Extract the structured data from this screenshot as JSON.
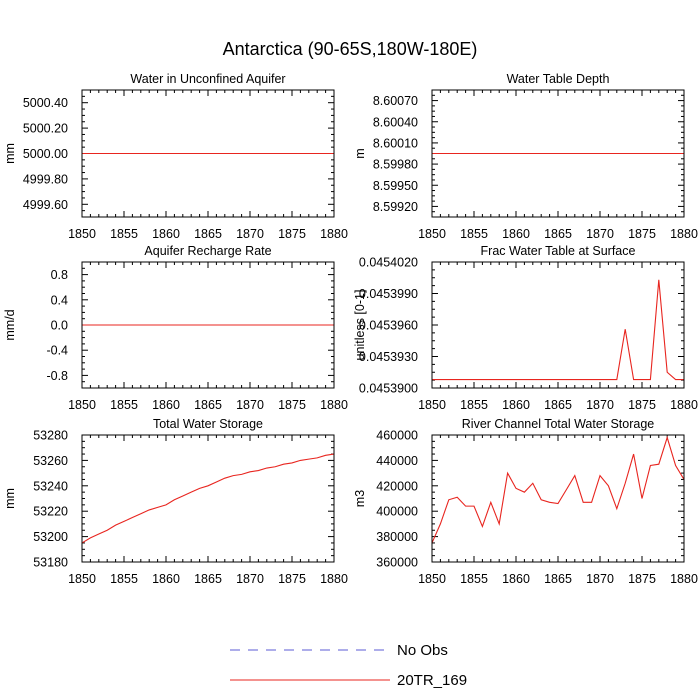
{
  "figure": {
    "title": "Antarctica (90-65S,180W-180E)"
  },
  "legend": {
    "entries": [
      {
        "label": "No Obs",
        "color": "#5b5bd6",
        "dash": true
      },
      {
        "label": "20TR_169",
        "color": "#e8251f",
        "dash": false
      }
    ]
  },
  "chart_data": [
    {
      "type": "line",
      "title": "Water in Unconfined Aquifer",
      "xlabel": "",
      "ylabel": "mm",
      "xlim": [
        1850,
        1880
      ],
      "ylim": [
        4999.5,
        5000.5
      ],
      "xticks": [
        1850,
        1855,
        1860,
        1865,
        1870,
        1875,
        1880
      ],
      "yticks": [
        4999.6,
        4999.8,
        5000.0,
        5000.2,
        5000.4
      ],
      "ytick_labels": [
        "4999.60",
        "4999.80",
        "5000.00",
        "5000.20",
        "5000.40"
      ],
      "series": [
        {
          "name": "20TR_169",
          "color": "#e8251f",
          "x": [
            1850,
            1880
          ],
          "y": [
            5000.0,
            5000.0
          ]
        }
      ]
    },
    {
      "type": "line",
      "title": "Water Table Depth",
      "xlabel": "",
      "ylabel": "m",
      "xlim": [
        1850,
        1880
      ],
      "ylim": [
        8.59905,
        8.60085
      ],
      "xticks": [
        1850,
        1855,
        1860,
        1865,
        1870,
        1875,
        1880
      ],
      "yticks": [
        8.5992,
        8.5995,
        8.5998,
        8.6001,
        8.6004,
        8.6007
      ],
      "ytick_labels": [
        "8.59920",
        "8.59950",
        "8.59980",
        "8.60010",
        "8.60040",
        "8.60070"
      ],
      "series": [
        {
          "name": "20TR_169",
          "color": "#e8251f",
          "x": [
            1850,
            1880
          ],
          "y": [
            8.59995,
            8.59995
          ]
        }
      ]
    },
    {
      "type": "line",
      "title": "Aquifer Recharge Rate",
      "xlabel": "",
      "ylabel": "mm/d",
      "xlim": [
        1850,
        1880
      ],
      "ylim": [
        -1.0,
        1.0
      ],
      "xticks": [
        1850,
        1855,
        1860,
        1865,
        1870,
        1875,
        1880
      ],
      "yticks": [
        -0.8,
        -0.4,
        0.0,
        0.4,
        0.8
      ],
      "ytick_labels": [
        "-0.8",
        "-0.4",
        "0.0",
        "0.4",
        "0.8"
      ],
      "series": [
        {
          "name": "20TR_169",
          "color": "#e8251f",
          "x": [
            1850,
            1880
          ],
          "y": [
            0.0,
            0.0
          ]
        }
      ]
    },
    {
      "type": "line",
      "title": "Frac Water Table at Surface",
      "xlabel": "",
      "ylabel": "unitless [0-1]",
      "xlim": [
        1850,
        1880
      ],
      "ylim": [
        0.04539,
        0.045402
      ],
      "xticks": [
        1850,
        1855,
        1860,
        1865,
        1870,
        1875,
        1880
      ],
      "yticks": [
        0.04539,
        0.045393,
        0.045396,
        0.045399,
        0.045402
      ],
      "ytick_labels": [
        "0.0453900",
        "0.0453930",
        "0.0453960",
        "0.0453990",
        "0.0454020"
      ],
      "series": [
        {
          "name": "20TR_169",
          "color": "#e8251f",
          "x": [
            1850,
            1851,
            1852,
            1853,
            1854,
            1855,
            1856,
            1857,
            1858,
            1859,
            1860,
            1861,
            1862,
            1863,
            1864,
            1865,
            1866,
            1867,
            1868,
            1869,
            1870,
            1871,
            1872,
            1873,
            1874,
            1875,
            1876,
            1877,
            1878,
            1879,
            1880
          ],
          "y": [
            0.0453908,
            0.0453908,
            0.0453908,
            0.0453908,
            0.0453908,
            0.0453908,
            0.0453908,
            0.0453908,
            0.0453908,
            0.0453908,
            0.0453908,
            0.0453908,
            0.0453908,
            0.0453908,
            0.0453908,
            0.0453908,
            0.0453908,
            0.0453908,
            0.0453908,
            0.0453908,
            0.0453908,
            0.0453908,
            0.0453908,
            0.0453956,
            0.0453908,
            0.0453908,
            0.0453908,
            0.0454003,
            0.0453915,
            0.0453908,
            0.0453908
          ]
        }
      ]
    },
    {
      "type": "line",
      "title": "Total Water Storage",
      "xlabel": "",
      "ylabel": "mm",
      "xlim": [
        1850,
        1880
      ],
      "ylim": [
        53180,
        53280
      ],
      "xticks": [
        1850,
        1855,
        1860,
        1865,
        1870,
        1875,
        1880
      ],
      "yticks": [
        53180,
        53200,
        53220,
        53240,
        53260,
        53280
      ],
      "ytick_labels": [
        "53180",
        "53200",
        "53220",
        "53240",
        "53260",
        "53280"
      ],
      "series": [
        {
          "name": "20TR_169",
          "color": "#e8251f",
          "x": [
            1850,
            1851,
            1852,
            1853,
            1854,
            1855,
            1856,
            1857,
            1858,
            1859,
            1860,
            1861,
            1862,
            1863,
            1864,
            1865,
            1866,
            1867,
            1868,
            1869,
            1870,
            1871,
            1872,
            1873,
            1874,
            1875,
            1876,
            1877,
            1878,
            1879,
            1880
          ],
          "y": [
            53195,
            53199,
            53202,
            53205,
            53209,
            53212,
            53215,
            53218,
            53221,
            53223,
            53225,
            53229,
            53232,
            53235,
            53238,
            53240,
            53243,
            53246,
            53248,
            53249,
            53251,
            53252,
            53254,
            53255,
            53257,
            53258,
            53260,
            53261,
            53262,
            53264,
            53265
          ]
        }
      ]
    },
    {
      "type": "line",
      "title": "River Channel Total Water Storage",
      "xlabel": "",
      "ylabel": "m3",
      "xlim": [
        1850,
        1880
      ],
      "ylim": [
        360000,
        460000
      ],
      "xticks": [
        1850,
        1855,
        1860,
        1865,
        1870,
        1875,
        1880
      ],
      "yticks": [
        360000,
        380000,
        400000,
        420000,
        440000,
        460000
      ],
      "ytick_labels": [
        "360000",
        "380000",
        "400000",
        "420000",
        "440000",
        "460000"
      ],
      "series": [
        {
          "name": "20TR_169",
          "color": "#e8251f",
          "x": [
            1850,
            1851,
            1852,
            1853,
            1854,
            1855,
            1856,
            1857,
            1858,
            1859,
            1860,
            1861,
            1862,
            1863,
            1864,
            1865,
            1866,
            1867,
            1868,
            1869,
            1870,
            1871,
            1872,
            1873,
            1874,
            1875,
            1876,
            1877,
            1878,
            1879,
            1880
          ],
          "y": [
            375000,
            390000,
            409000,
            411000,
            404000,
            404000,
            388000,
            407000,
            390000,
            430000,
            418000,
            415000,
            422000,
            409000,
            407000,
            406000,
            417000,
            428000,
            407000,
            407000,
            428000,
            420000,
            402000,
            422000,
            445000,
            410000,
            436000,
            437000,
            458000,
            436000,
            425000
          ]
        }
      ]
    }
  ]
}
